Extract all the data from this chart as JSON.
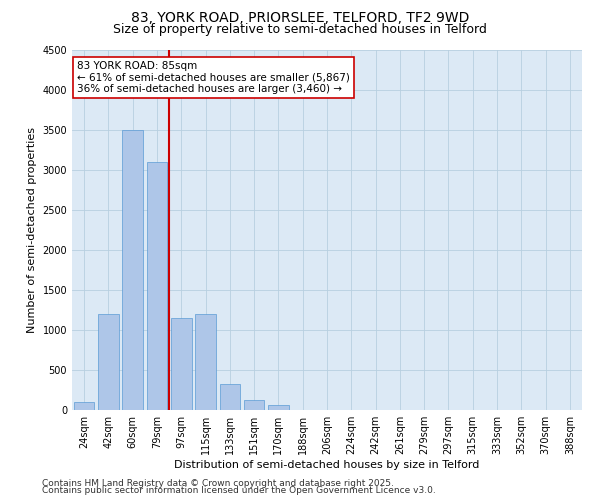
{
  "title1": "83, YORK ROAD, PRIORSLEE, TELFORD, TF2 9WD",
  "title2": "Size of property relative to semi-detached houses in Telford",
  "xlabel": "Distribution of semi-detached houses by size in Telford",
  "ylabel": "Number of semi-detached properties",
  "categories": [
    "24sqm",
    "42sqm",
    "60sqm",
    "79sqm",
    "97sqm",
    "115sqm",
    "133sqm",
    "151sqm",
    "170sqm",
    "188sqm",
    "206sqm",
    "224sqm",
    "242sqm",
    "261sqm",
    "279sqm",
    "297sqm",
    "315sqm",
    "333sqm",
    "352sqm",
    "370sqm",
    "388sqm"
  ],
  "values": [
    100,
    1200,
    3500,
    3100,
    1150,
    1200,
    330,
    120,
    60,
    5,
    2,
    1,
    0,
    0,
    0,
    0,
    0,
    0,
    0,
    0,
    0
  ],
  "bar_color": "#aec6e8",
  "bar_edge_color": "#5b9bd5",
  "vline_color": "#cc0000",
  "annotation_text": "83 YORK ROAD: 85sqm\n← 61% of semi-detached houses are smaller (5,867)\n36% of semi-detached houses are larger (3,460) →",
  "annotation_box_color": "#ffffff",
  "annotation_box_edge": "#cc0000",
  "ylim": [
    0,
    4500
  ],
  "yticks": [
    0,
    500,
    1000,
    1500,
    2000,
    2500,
    3000,
    3500,
    4000,
    4500
  ],
  "background_color": "#ffffff",
  "plot_bg_color": "#dce9f5",
  "grid_color": "#b8cfe0",
  "footer1": "Contains HM Land Registry data © Crown copyright and database right 2025.",
  "footer2": "Contains public sector information licensed under the Open Government Licence v3.0.",
  "title_fontsize": 10,
  "subtitle_fontsize": 9,
  "axis_label_fontsize": 8,
  "tick_fontsize": 7,
  "annotation_fontsize": 7.5,
  "footer_fontsize": 6.5
}
